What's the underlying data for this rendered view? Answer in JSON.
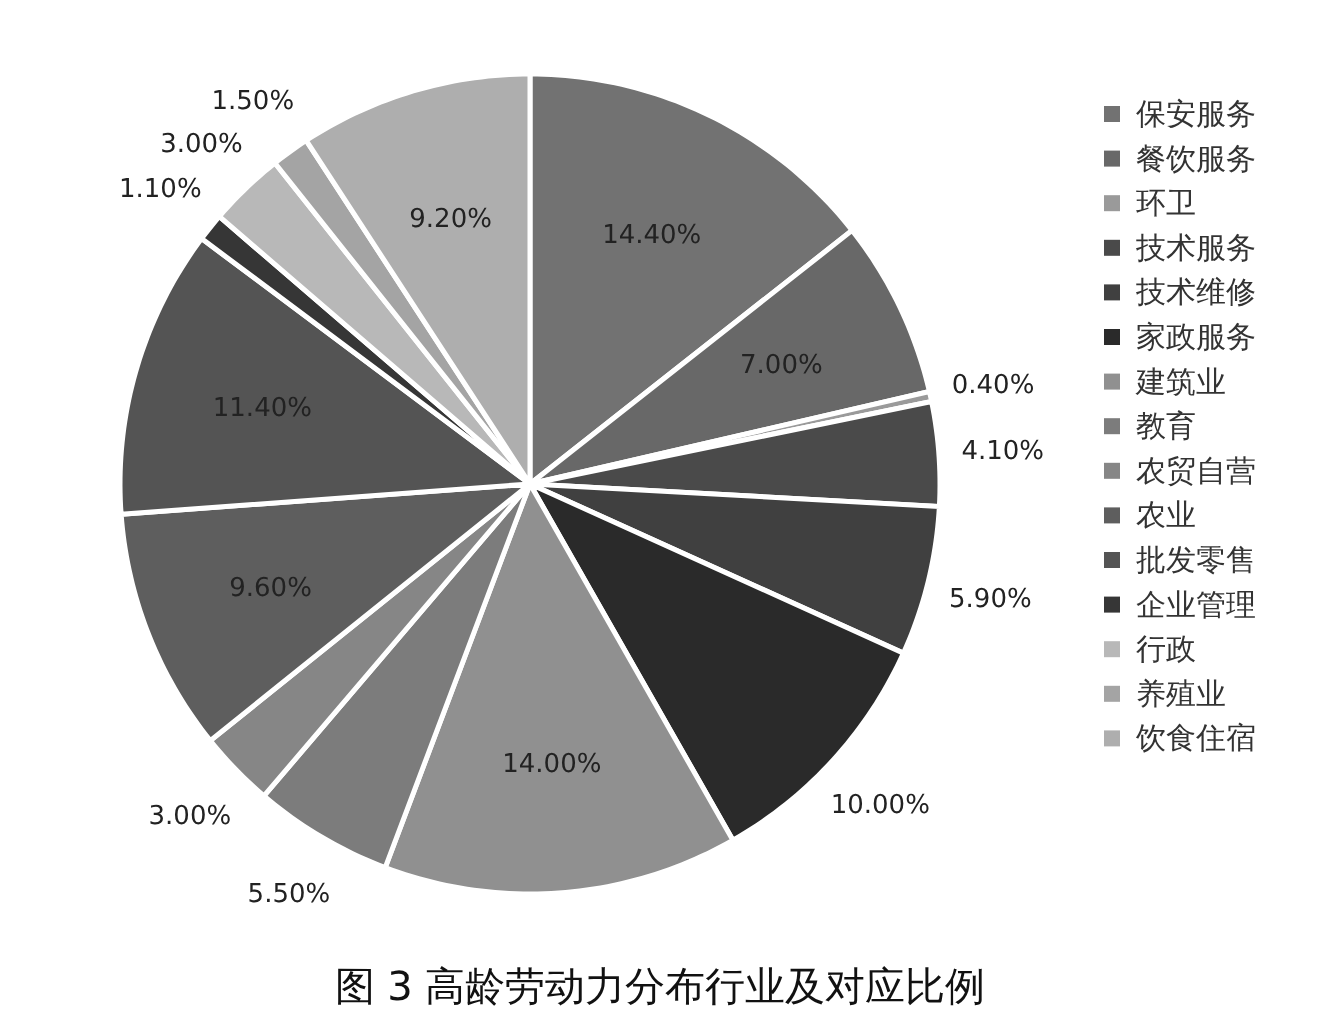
{
  "chart_data": {
    "type": "pie",
    "title": "图 3  高龄劳动力分布行业及对应比例",
    "categories": [
      "保安服务",
      "餐饮服务",
      "环卫",
      "技术服务",
      "技术维修",
      "家政服务",
      "建筑业",
      "教育",
      "农贸自营",
      "农业",
      "批发零售",
      "企业管理",
      "行政",
      "养殖业",
      "饮食住宿"
    ],
    "values": [
      14.4,
      7.0,
      0.4,
      4.1,
      5.9,
      10.0,
      14.0,
      5.5,
      3.0,
      9.6,
      11.4,
      1.1,
      3.0,
      1.5,
      9.2
    ],
    "value_labels": [
      "14.40%",
      "7.00%",
      "0.40%",
      "4.10%",
      "5.90%",
      "10.00%",
      "14.00%",
      "5.50%",
      "3.00%",
      "9.60%",
      "11.40%",
      "1.10%",
      "3.00%",
      "1.50%",
      "9.20%"
    ],
    "colors": [
      "#727272",
      "#686868",
      "#9a9a9a",
      "#4a4a4a",
      "#404040",
      "#2a2a2a",
      "#909090",
      "#7c7c7c",
      "#868686",
      "#5e5e5e",
      "#545454",
      "#363636",
      "#b8b8b8",
      "#a4a4a4",
      "#aeaeae"
    ],
    "legend": "right"
  }
}
